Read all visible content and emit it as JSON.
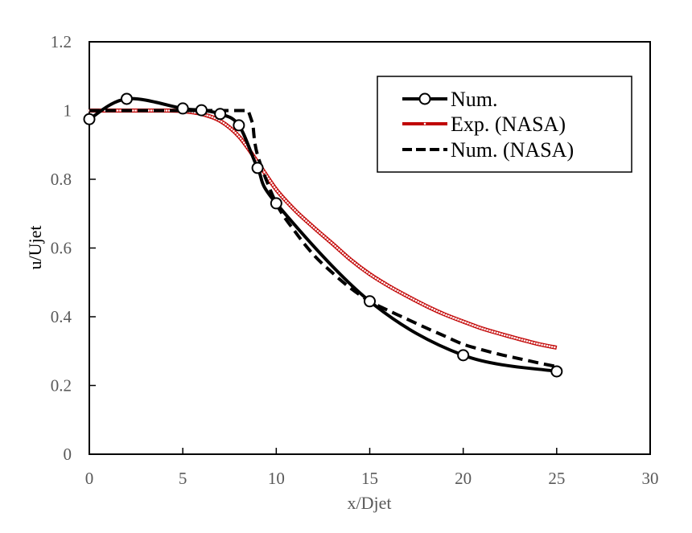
{
  "chart_data": {
    "type": "line",
    "title": "",
    "xlabel": "x/Djet",
    "ylabel": "u/Ujet",
    "xlim": [
      0,
      30
    ],
    "ylim": [
      0,
      1.2
    ],
    "xticks": [
      0,
      5,
      10,
      15,
      20,
      25,
      30
    ],
    "yticks": [
      0,
      0.2,
      0.4,
      0.6,
      0.8,
      1,
      1.2
    ],
    "xtick_labels": [
      "0",
      "5",
      "10",
      "15",
      "20",
      "25",
      "30"
    ],
    "ytick_labels": [
      "0",
      "0.2",
      "0.4",
      "0.6",
      "0.8",
      "1",
      "1.2"
    ],
    "grid": false,
    "legend_position": "top-right",
    "series": [
      {
        "name": "Num.",
        "style": "solid-with-open-circle-markers",
        "color": "#000000",
        "x": [
          0,
          2,
          5,
          6,
          7,
          8,
          9,
          10,
          15,
          20,
          25
        ],
        "y": [
          0.975,
          1.034,
          1.006,
          1.001,
          0.99,
          0.957,
          0.833,
          0.73,
          0.445,
          0.288,
          0.241
        ]
      },
      {
        "name": "Exp. (NASA)",
        "style": "solid-with-small-markers",
        "color": "#c00000",
        "x": [
          0,
          1,
          2,
          3,
          4,
          5,
          6,
          7,
          8,
          9,
          10,
          11,
          12,
          13,
          14,
          15,
          16,
          17,
          18,
          19,
          20,
          21,
          22,
          23,
          24,
          25
        ],
        "y": [
          1.0,
          1.0,
          1.0,
          1.0,
          1.0,
          0.998,
          0.99,
          0.97,
          0.925,
          0.85,
          0.77,
          0.71,
          0.66,
          0.613,
          0.565,
          0.524,
          0.49,
          0.46,
          0.432,
          0.407,
          0.386,
          0.366,
          0.35,
          0.335,
          0.321,
          0.31
        ]
      },
      {
        "name": "Num. (NASA)",
        "style": "dashed",
        "color": "#000000",
        "x": [
          0,
          8.5,
          8.75,
          9,
          10,
          11,
          12,
          13,
          14,
          15,
          16,
          17,
          18,
          19,
          20,
          21,
          22,
          23,
          24,
          25
        ],
        "y": [
          1.0,
          1.0,
          0.96,
          0.87,
          0.73,
          0.648,
          0.58,
          0.528,
          0.482,
          0.445,
          0.418,
          0.393,
          0.368,
          0.344,
          0.32,
          0.304,
          0.29,
          0.278,
          0.266,
          0.255
        ]
      }
    ]
  }
}
